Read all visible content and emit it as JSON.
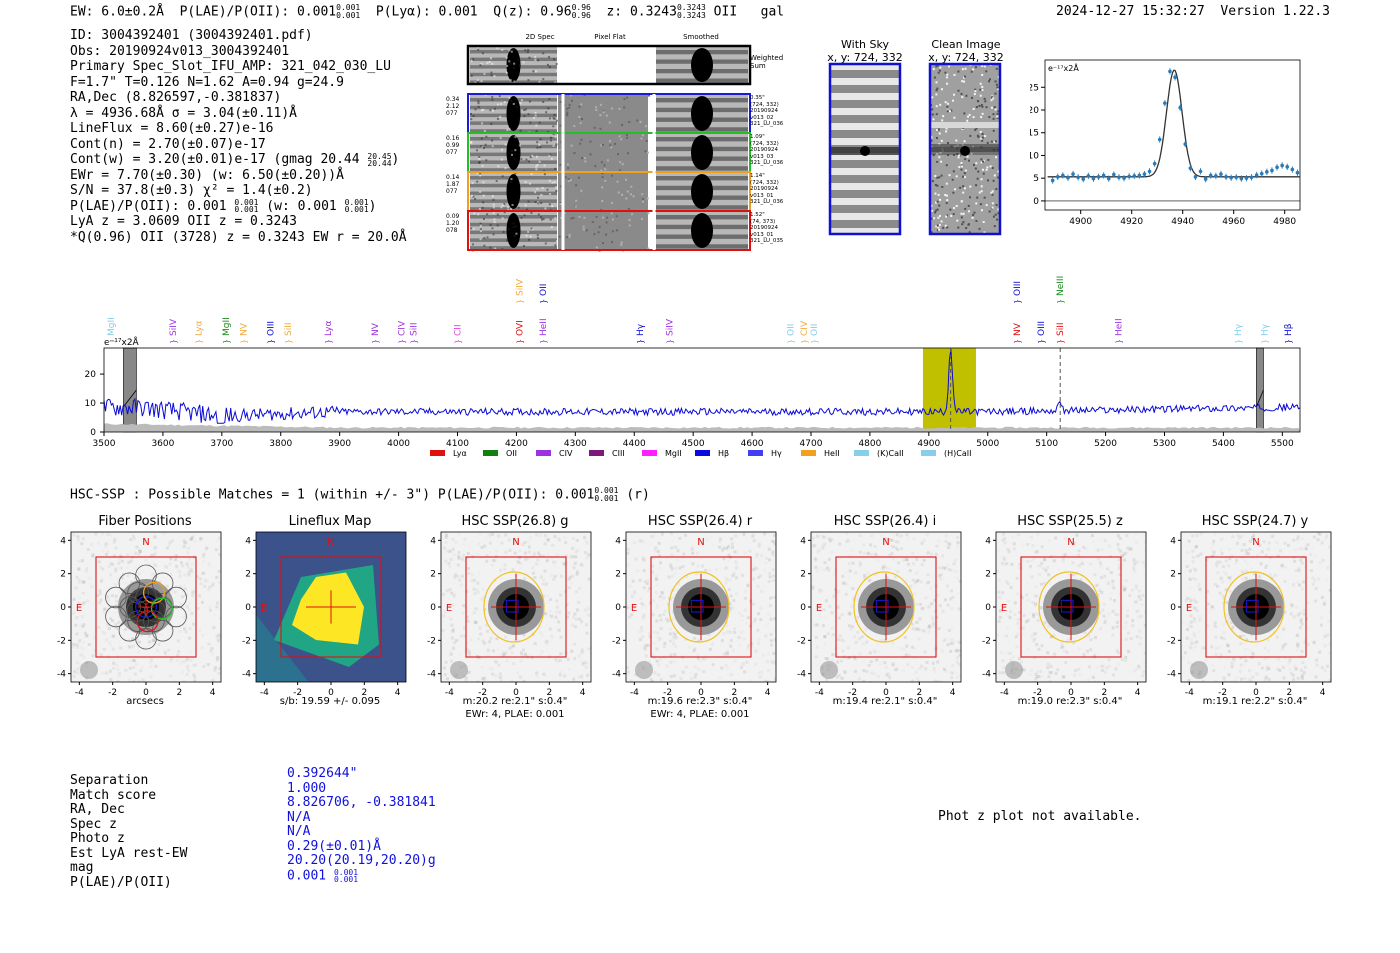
{
  "header": {
    "ew": "EW: 6.0±0.2Å",
    "plae_label": "P(LAE)/P(OII):",
    "plae_val": "0.001",
    "plae_sup": "0.001",
    "plae_sub": "0.001",
    "plya": "P(Lyα): 0.001",
    "q_label": "Q(z): 0.96",
    "q_sup": "0.96",
    "q_sub": "0.96",
    "z_label": "z: 0.3243",
    "z_sup": "0.3243",
    "z_sub": "0.3243",
    "z_line": "OII",
    "gal": "gal",
    "timestamp": "2024-12-27 15:32:27",
    "version": "Version 1.22.3"
  },
  "info": {
    "l1": "ID: 3004392401 (3004392401.pdf)",
    "l2": "Obs: 20190924v013_3004392401",
    "l3": "Primary Spec_Slot_IFU_AMP: 321_042_030_LU",
    "l4": "F=1.7\"  T=0.126  N=1.62  A=0.94  g=24.9",
    "l5": "RA,Dec (8.826597,-0.381837)",
    "l6": "λ = 4936.68Å  σ = 3.04(±0.11)Å",
    "l7": "LineFlux = 8.60(±0.27)e-16",
    "l8": "Cont(n) = 2.70(±0.07)e-17",
    "l9a": "Cont(w) = 3.20(±0.01)e-17 (gmag 20.44",
    "l9sup": "20.45",
    "l9sub": "20.44",
    "l10": "EWr = 7.70(±0.30) (w: 6.50(±0.20))Å",
    "l11": "S/N = 37.8(±0.3)  χ² = 1.4(±0.2)",
    "l12a": "P(LAE)/P(OII): 0.001",
    "l12sup1": "0.001",
    "l12sub1": "0.001",
    "l12b": "(w: 0.001",
    "l12sup2": "0.001",
    "l12sub2": "0.001",
    "l13": "LyA z = 3.0609  OII z = 0.3243",
    "l14": "*Q(0.96) OII (3728) z = 0.3243  EW r = 20.0Å"
  },
  "spec2d": {
    "col_headers": [
      "2D Spec",
      "Pixel Flat",
      "Smoothed"
    ],
    "weighted_sum": "Weighted Sum",
    "rows": [
      {
        "left": [
          "0.34",
          "2.12",
          "077"
        ],
        "right": [
          "0.35\"",
          "(724, 332)",
          "20190924",
          "v013_02",
          "321_LU_036"
        ],
        "color": "#1a1ad8"
      },
      {
        "left": [
          "0.16",
          "0.99",
          "077"
        ],
        "right": [
          "1.09\"",
          "(724, 332)",
          "20190924",
          "v013_03",
          "321_LU_036"
        ],
        "color": "#22c022"
      },
      {
        "left": [
          "0.14",
          "1.87",
          "077"
        ],
        "right": [
          "1.14\"",
          "(724, 332)",
          "20190924",
          "v013_01",
          "321_LU_036"
        ],
        "color": "#f0a020"
      },
      {
        "left": [
          "0.09",
          "1.20",
          "078"
        ],
        "right": [
          "1.52\"",
          "(74, 373)",
          "20190924",
          "v013_01",
          "321_LU_035"
        ],
        "color": "#e01010"
      }
    ]
  },
  "cutouts": {
    "with_sky": "With Sky",
    "with_sky_xy": "x, y: 724, 332",
    "clean": "Clean Image",
    "clean_xy": "x, y: 724, 332"
  },
  "zoom_chart": {
    "type": "scatter",
    "unit_label": "e⁻¹⁷x2Å",
    "x_ticks": [
      "4900",
      "4920",
      "4940",
      "4960",
      "4980"
    ],
    "y_ticks": [
      "0",
      "5",
      "10",
      "15",
      "20",
      "25"
    ],
    "xlim": [
      4886,
      4986
    ],
    "ylim": [
      -2,
      31
    ],
    "x": [
      4889,
      4891,
      4893,
      4895,
      4897,
      4899,
      4901,
      4903,
      4905,
      4907,
      4909,
      4911,
      4913,
      4915,
      4917,
      4919,
      4921,
      4923,
      4925,
      4927,
      4929,
      4931,
      4933,
      4935,
      4937,
      4939,
      4941,
      4943,
      4945,
      4947,
      4949,
      4951,
      4953,
      4955,
      4957,
      4959,
      4961,
      4963,
      4965,
      4967,
      4969,
      4971,
      4973,
      4975,
      4977,
      4979,
      4981,
      4983,
      4985
    ],
    "y": [
      4.5,
      5.3,
      5.6,
      5.1,
      5.9,
      5.2,
      4.8,
      5.5,
      4.9,
      5.3,
      5.6,
      4.9,
      5.8,
      5.2,
      5.0,
      5.4,
      5.5,
      5.6,
      5.9,
      6.5,
      8.2,
      13.5,
      21.5,
      28.5,
      27.2,
      20.5,
      12.5,
      7.2,
      5.3,
      6.5,
      4.8,
      5.6,
      5.5,
      5.9,
      5.3,
      5.1,
      5.2,
      4.9,
      5.0,
      5.2,
      5.7,
      6.0,
      6.4,
      6.7,
      7.4,
      7.8,
      7.5,
      6.9,
      6.2
    ],
    "err": 0.7,
    "model": {
      "continuum": 5.3,
      "center": 4936.7,
      "sigma": 3.04,
      "peak": 23.5
    }
  },
  "spectrum_chart": {
    "type": "line",
    "unit_label": "e⁻¹⁷x2Å",
    "xlim": [
      3500,
      5530
    ],
    "ylim": [
      0,
      29
    ],
    "x_ticks": [
      "3500",
      "3600",
      "3700",
      "3800",
      "3900",
      "4000",
      "4100",
      "4200",
      "4300",
      "4400",
      "4500",
      "4600",
      "4700",
      "4800",
      "4900",
      "5000",
      "5100",
      "5200",
      "5300",
      "5400",
      "5500"
    ],
    "y_ticks": [
      "0",
      "10",
      "20"
    ],
    "highlight": [
      4890,
      4980
    ],
    "masks": [
      [
        3533,
        3555
      ],
      [
        5456,
        5468
      ]
    ],
    "peak_x": 4937,
    "dashed_x": [
      4937,
      5123
    ],
    "lines": [
      {
        "name": "MgII",
        "x": 3512,
        "row": 1,
        "color": "#87ceeb"
      },
      {
        "name": "SiIV",
        "x": 3617,
        "row": 1,
        "color": "#9c32e0"
      },
      {
        "name": "Lyα",
        "x": 3660,
        "row": 1,
        "color": "#f2a93b"
      },
      {
        "name": "MgII",
        "x": 3707,
        "row": 1,
        "color": "#1d8a1d"
      },
      {
        "name": "NV",
        "x": 3737,
        "row": 1,
        "color": "#f2a93b"
      },
      {
        "name": "OIII",
        "x": 3783,
        "row": 1,
        "color": "#1010d0"
      },
      {
        "name": "SiII",
        "x": 3812,
        "row": 1,
        "color": "#f2a93b"
      },
      {
        "name": "Lyα",
        "x": 3880,
        "row": 1,
        "color": "#9c32e0"
      },
      {
        "name": "NV",
        "x": 3960,
        "row": 1,
        "color": "#9c32e0"
      },
      {
        "name": "CIV",
        "x": 4005,
        "row": 1,
        "color": "#9c32e0"
      },
      {
        "name": "SiII",
        "x": 4025,
        "row": 1,
        "color": "#9c32e0"
      },
      {
        "name": "CII",
        "x": 4100,
        "row": 1,
        "color": "#e040e0"
      },
      {
        "name": "SiIV",
        "x": 4205,
        "row": 0,
        "color": "#f2a93b"
      },
      {
        "name": "OII",
        "x": 4245,
        "row": 0,
        "color": "#1010d0"
      },
      {
        "name": "OVI",
        "x": 4205,
        "row": 1,
        "color": "#e01010"
      },
      {
        "name": "HeII",
        "x": 4245,
        "row": 1,
        "color": "#9c32e0"
      },
      {
        "name": "Hγ",
        "x": 4410,
        "row": 1,
        "color": "#1010d0"
      },
      {
        "name": "SiIV",
        "x": 4460,
        "row": 1,
        "color": "#9c32e0"
      },
      {
        "name": "OII",
        "x": 4665,
        "row": 1,
        "color": "#87ceeb"
      },
      {
        "name": "CIV",
        "x": 4688,
        "row": 1,
        "color": "#f2a93b"
      },
      {
        "name": "OII",
        "x": 4705,
        "row": 1,
        "color": "#87ceeb"
      },
      {
        "name": "OIII",
        "x": 5050,
        "row": 0,
        "color": "#1010d0"
      },
      {
        "name": "NeIII",
        "x": 5123,
        "row": 0,
        "color": "#1d8a1d"
      },
      {
        "name": "NV",
        "x": 5050,
        "row": 1,
        "color": "#e01010"
      },
      {
        "name": "OIII",
        "x": 5090,
        "row": 1,
        "color": "#1010d0"
      },
      {
        "name": "SiII",
        "x": 5123,
        "row": 1,
        "color": "#e01010"
      },
      {
        "name": "HeII",
        "x": 5222,
        "row": 1,
        "color": "#9c32e0"
      },
      {
        "name": "Hγ",
        "x": 5425,
        "row": 1,
        "color": "#87ceeb"
      },
      {
        "name": "Hγ",
        "x": 5470,
        "row": 1,
        "color": "#87ceeb"
      },
      {
        "name": "Hβ",
        "x": 5510,
        "row": 1,
        "color": "#1010d0"
      }
    ],
    "legend": [
      {
        "name": "Lyα",
        "color": "#e01010"
      },
      {
        "name": "OII",
        "color": "#108010"
      },
      {
        "name": "CIV",
        "color": "#9c32e0"
      },
      {
        "name": "CIII",
        "color": "#7a1a7a"
      },
      {
        "name": "MgII",
        "color": "#ff20ff"
      },
      {
        "name": "Hβ",
        "color": "#0a0ae0"
      },
      {
        "name": "Hγ",
        "color": "#4040f0"
      },
      {
        "name": "HeII",
        "color": "#f2a020"
      },
      {
        "name": "(K)CaII",
        "color": "#87ceeb"
      },
      {
        "name": "(H)CaII",
        "color": "#87ceeb"
      }
    ]
  },
  "hsc": {
    "summary_a": "HSC-SSP : Possible Matches = 1 (within +/- 3\")  P(LAE)/P(OII): 0.001",
    "summary_sup": "0.001",
    "summary_sub": "0.001",
    "summary_b": "(r)",
    "axis_ticks": [
      "-4",
      "-2",
      "0",
      "2",
      "4"
    ],
    "panels": [
      {
        "title": "Fiber Positions",
        "cap1": "arcsecs",
        "cap2": "",
        "kind": "fiber"
      },
      {
        "title": "Lineflux Map",
        "cap1": "s/b: 19.59 +/- 0.095",
        "cap2": "",
        "kind": "lineflux"
      },
      {
        "title": "HSC SSP(26.8) g",
        "cap1": "m:20.2  re:2.1\"  s:0.4\"",
        "cap2": "EWr: 4, PLAE: 0.001",
        "kind": "hsc"
      },
      {
        "title": "HSC SSP(26.4) r",
        "cap1": "m:19.6  re:2.3\"  s:0.4\"",
        "cap2": "EWr: 4, PLAE: 0.001",
        "kind": "hsc"
      },
      {
        "title": "HSC SSP(26.4) i",
        "cap1": "m:19.4  re:2.1\"  s:0.4\"",
        "cap2": "",
        "kind": "hsc"
      },
      {
        "title": "HSC SSP(25.5) z",
        "cap1": "m:19.0  re:2.3\"  s:0.4\"",
        "cap2": "",
        "kind": "hsc"
      },
      {
        "title": "HSC SSP(24.7) y",
        "cap1": "m:19.1  re:2.2\"  s:0.4\"",
        "cap2": "",
        "kind": "hsc"
      }
    ]
  },
  "match": {
    "labels": [
      "Separation",
      "Match score",
      "RA, Dec",
      "Spec z",
      "Photo z",
      "Est LyA rest-EW",
      "mag",
      "P(LAE)/P(OII)"
    ],
    "values": [
      "0.392644\"",
      "1.000",
      "8.826706, -0.381841",
      "N/A",
      "N/A",
      "0.29(±0.01)Å",
      "20.20(20.19,20.20)g",
      "0.001"
    ],
    "plae_sup": "0.001",
    "plae_sub": "0.001",
    "photz_msg": "Phot z plot not available."
  }
}
